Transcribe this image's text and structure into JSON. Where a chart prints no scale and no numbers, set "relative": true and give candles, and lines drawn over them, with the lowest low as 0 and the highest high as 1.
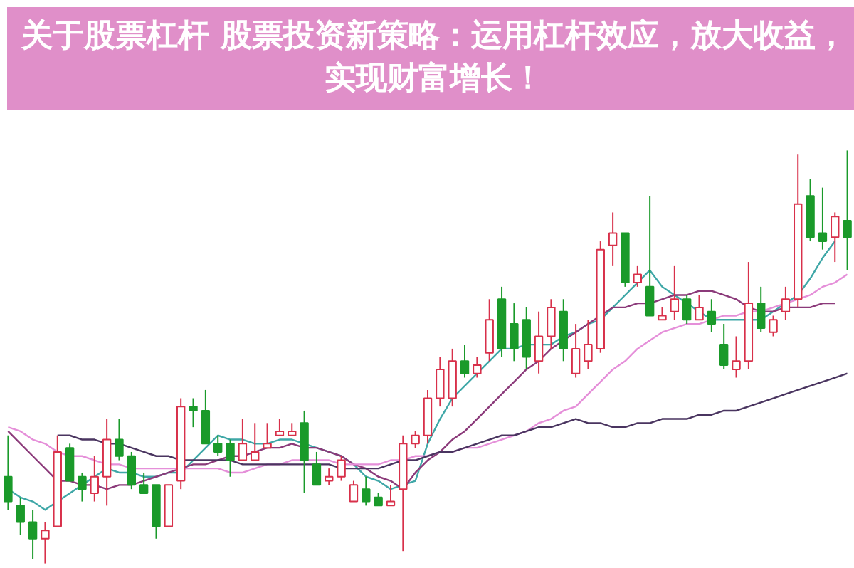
{
  "chart_data": {
    "type": "candlestick",
    "relative": true,
    "title": "关于股票杠杆 股票投资新策略：运用杠杆效应，放大收益，实现财富增长！",
    "categories": [
      null,
      null,
      null,
      null,
      null,
      null,
      null,
      null,
      null,
      null,
      null,
      null,
      null,
      null,
      null,
      null,
      null,
      null,
      null,
      null,
      null,
      null,
      null,
      null,
      null,
      null,
      null,
      null,
      null,
      null,
      null,
      null,
      null,
      null,
      null,
      null,
      null,
      null,
      null,
      null,
      null,
      null,
      null,
      null,
      null,
      null,
      null,
      null,
      null,
      null,
      null,
      null,
      null,
      null,
      null,
      null,
      null,
      null,
      null,
      null,
      null,
      null,
      null,
      null,
      null,
      null,
      null,
      null,
      null
    ],
    "ohlc": [
      [
        0.21,
        0.31,
        0.13,
        0.15
      ],
      [
        0.14,
        0.16,
        0.07,
        0.1
      ],
      [
        0.1,
        0.13,
        0.01,
        0.06
      ],
      [
        0.06,
        0.1,
        0,
        0.08
      ],
      [
        0.09,
        0.31,
        0.09,
        0.27
      ],
      [
        0.28,
        0.29,
        0.2,
        0.2
      ],
      [
        0.21,
        0.22,
        0.15,
        0.18
      ],
      [
        0.17,
        0.26,
        0.15,
        0.21
      ],
      [
        0.21,
        0.35,
        0.14,
        0.3
      ],
      [
        0.3,
        0.35,
        0.25,
        0.26
      ],
      [
        0.26,
        0.27,
        0.18,
        0.19
      ],
      [
        0.19,
        0.22,
        0.17,
        0.17
      ],
      [
        0.19,
        0.19,
        0.06,
        0.09
      ],
      [
        0.09,
        0.19,
        0.09,
        0.19
      ],
      [
        0.2,
        0.4,
        0.18,
        0.38
      ],
      [
        0.38,
        0.4,
        0.33,
        0.37
      ],
      [
        0.37,
        0.42,
        0.29,
        0.29
      ],
      [
        0.29,
        0.31,
        0.26,
        0.27
      ],
      [
        0.29,
        0.3,
        0.21,
        0.25
      ],
      [
        0.25,
        0.35,
        0.25,
        0.29
      ],
      [
        0.25,
        0.34,
        0.25,
        0.27
      ],
      [
        0.28,
        0.34,
        0.28,
        0.29
      ],
      [
        0.31,
        0.35,
        0.31,
        0.32
      ],
      [
        0.31,
        0.34,
        0.31,
        0.32
      ],
      [
        0.34,
        0.37,
        0.17,
        0.25
      ],
      [
        0.24,
        0.27,
        0.19,
        0.19
      ],
      [
        0.2,
        0.23,
        0.19,
        0.21
      ],
      [
        0.21,
        0.26,
        0.2,
        0.25
      ],
      [
        0.15,
        0.2,
        0.15,
        0.19
      ],
      [
        0.18,
        0.21,
        0.14,
        0.15
      ],
      [
        0.16,
        0.17,
        0.14,
        0.14
      ],
      [
        0.14,
        0.19,
        0.14,
        0.15
      ],
      [
        0.18,
        0.31,
        0.03,
        0.29
      ],
      [
        0.29,
        0.32,
        0.28,
        0.31
      ],
      [
        0.31,
        0.42,
        0.29,
        0.4
      ],
      [
        0.4,
        0.5,
        0.38,
        0.47
      ],
      [
        0.4,
        0.52,
        0.38,
        0.49
      ],
      [
        0.49,
        0.53,
        0.45,
        0.46
      ],
      [
        0.46,
        0.5,
        0.45,
        0.48
      ],
      [
        0.51,
        0.64,
        0.49,
        0.59
      ],
      [
        0.64,
        0.67,
        0.5,
        0.52
      ],
      [
        0.58,
        0.63,
        0.49,
        0.52
      ],
      [
        0.59,
        0.62,
        0.47,
        0.5
      ],
      [
        0.49,
        0.61,
        0.46,
        0.55
      ],
      [
        0.55,
        0.64,
        0.52,
        0.62
      ],
      [
        0.61,
        0.64,
        0.49,
        0.52
      ],
      [
        0.46,
        0.58,
        0.45,
        0.52
      ],
      [
        0.49,
        0.59,
        0.47,
        0.53
      ],
      [
        0.52,
        0.78,
        0.51,
        0.76
      ],
      [
        0.77,
        0.85,
        0.72,
        0.8
      ],
      [
        0.8,
        0.8,
        0.67,
        0.68
      ],
      [
        0.68,
        0.72,
        0.67,
        0.7
      ],
      [
        0.67,
        0.89,
        0.6,
        0.6
      ],
      [
        0.59,
        0.62,
        0.59,
        0.6
      ],
      [
        0.61,
        0.72,
        0.59,
        0.64
      ],
      [
        0.64,
        0.65,
        0.58,
        0.59
      ],
      [
        0.59,
        0.65,
        0.59,
        0.62
      ],
      [
        0.61,
        0.64,
        0.56,
        0.58
      ],
      [
        0.53,
        0.58,
        0.47,
        0.48
      ],
      [
        0.47,
        0.55,
        0.45,
        0.49
      ],
      [
        0.49,
        0.73,
        0.47,
        0.63
      ],
      [
        0.63,
        0.67,
        0.56,
        0.57
      ],
      [
        0.56,
        0.6,
        0.55,
        0.59
      ],
      [
        0.61,
        0.67,
        0.59,
        0.64
      ],
      [
        0.64,
        0.99,
        0.62,
        0.87
      ],
      [
        0.89,
        0.93,
        0.78,
        0.79
      ],
      [
        0.8,
        0.91,
        0.76,
        0.78
      ],
      [
        0.79,
        0.85,
        0.73,
        0.84
      ],
      [
        0.83,
        1,
        0.71,
        0.79
      ]
    ],
    "series": [
      {
        "type": "line",
        "color": "#3fa7a7",
        "values": [
          0.18,
          0.16,
          0.15,
          0.13,
          0.15,
          0.17,
          0.19,
          0.21,
          0.23,
          0.22,
          0.22,
          0.21,
          0.21,
          0.22,
          0.22,
          0.25,
          0.28,
          0.31,
          0.3,
          0.3,
          0.29,
          0.29,
          0.3,
          0.3,
          0.29,
          0.28,
          0.27,
          0.26,
          0.24,
          0.21,
          0.2,
          0.18,
          0.19,
          0.2,
          0.29,
          0.35,
          0.4,
          0.43,
          0.46,
          0.49,
          0.52,
          0.52,
          0.53,
          0.53,
          0.53,
          0.55,
          0.56,
          0.58,
          0.59,
          0.62,
          0.65,
          0.68,
          0.71,
          0.67,
          0.65,
          0.63,
          0.61,
          0.59,
          0.59,
          0.59,
          0.59,
          0.59,
          0.61,
          0.63,
          0.65,
          0.69,
          0.74,
          0.78,
          null
        ]
      },
      {
        "type": "line",
        "color": "#8b3a7a",
        "values": [
          0.32,
          0.29,
          0.26,
          0.23,
          0.2,
          0.2,
          0.19,
          0.19,
          0.18,
          0.19,
          0.19,
          0.2,
          0.21,
          0.22,
          0.23,
          0.24,
          0.24,
          0.25,
          0.26,
          0.26,
          0.27,
          0.28,
          0.28,
          0.29,
          0.28,
          0.28,
          0.27,
          0.26,
          0.24,
          0.23,
          0.21,
          0.2,
          0.18,
          0.22,
          0.25,
          0.27,
          0.3,
          0.32,
          0.35,
          0.38,
          0.41,
          0.44,
          0.47,
          0.49,
          0.52,
          0.54,
          0.56,
          0.58,
          0.6,
          0.62,
          0.62,
          0.63,
          0.63,
          0.64,
          0.65,
          0.65,
          0.66,
          0.66,
          0.65,
          0.64,
          0.62,
          0.61,
          0.61,
          0.62,
          0.62,
          0.62,
          0.63,
          0.63,
          null
        ]
      },
      {
        "type": "line",
        "color": "#e58fd9",
        "values": [
          0.33,
          0.32,
          0.3,
          0.29,
          0.27,
          0.26,
          0.26,
          0.25,
          0.24,
          0.24,
          0.23,
          0.23,
          0.23,
          0.23,
          0.23,
          0.23,
          0.23,
          0.23,
          0.22,
          0.22,
          0.23,
          0.24,
          0.24,
          0.25,
          0.25,
          0.25,
          0.25,
          0.24,
          0.24,
          0.24,
          0.24,
          0.25,
          0.25,
          0.26,
          0.26,
          0.27,
          0.27,
          0.28,
          0.28,
          0.29,
          0.3,
          0.31,
          0.32,
          0.34,
          0.35,
          0.37,
          0.38,
          0.41,
          0.44,
          0.47,
          0.49,
          0.52,
          0.54,
          0.56,
          0.57,
          0.58,
          0.58,
          0.59,
          0.6,
          0.6,
          0.61,
          0.61,
          0.62,
          0.63,
          0.64,
          0.65,
          0.67,
          0.68,
          0.7
        ]
      },
      {
        "type": "line",
        "color": "#4a3560",
        "values": [
          null,
          null,
          null,
          null,
          0.31,
          0.31,
          0.3,
          0.3,
          0.29,
          0.29,
          0.28,
          0.27,
          0.26,
          0.26,
          0.25,
          0.25,
          0.25,
          0.25,
          0.25,
          0.24,
          0.24,
          0.24,
          0.24,
          0.24,
          0.24,
          0.24,
          0.24,
          0.23,
          0.23,
          0.23,
          0.23,
          0.24,
          0.25,
          0.25,
          0.26,
          0.27,
          0.27,
          0.28,
          0.29,
          0.3,
          0.31,
          0.31,
          0.32,
          0.33,
          0.33,
          0.34,
          0.35,
          0.34,
          0.34,
          0.33,
          0.33,
          0.34,
          0.34,
          0.35,
          0.35,
          0.35,
          0.36,
          0.36,
          0.37,
          0.37,
          0.38,
          0.39,
          0.4,
          0.41,
          0.42,
          0.43,
          0.44,
          0.45,
          0.46
        ]
      }
    ]
  }
}
